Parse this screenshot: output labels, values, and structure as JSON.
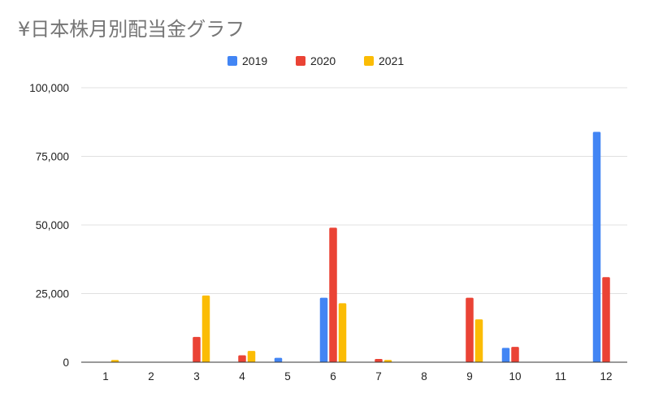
{
  "chart_data": {
    "type": "bar",
    "title": "¥日本株月別配当金グラフ",
    "categories": [
      "1",
      "2",
      "3",
      "4",
      "5",
      "6",
      "7",
      "8",
      "9",
      "10",
      "11",
      "12"
    ],
    "series": [
      {
        "name": "2019",
        "color": "#4285f4",
        "values": [
          0,
          0,
          0,
          0,
          1600,
          23500,
          0,
          0,
          0,
          5200,
          0,
          83900
        ]
      },
      {
        "name": "2020",
        "color": "#ea4335",
        "values": [
          0,
          0,
          9200,
          2500,
          0,
          49000,
          1200,
          0,
          23500,
          5600,
          0,
          31000
        ]
      },
      {
        "name": "2021",
        "color": "#fbbc04",
        "values": [
          800,
          0,
          24300,
          4100,
          0,
          21500,
          800,
          0,
          15600,
          0,
          0,
          0
        ]
      }
    ],
    "ylim": [
      0,
      100000
    ],
    "yticks": [
      {
        "value": 0,
        "label": "0"
      },
      {
        "value": 25000,
        "label": "25,000"
      },
      {
        "value": 50000,
        "label": "50,000"
      },
      {
        "value": 75000,
        "label": "75,000"
      },
      {
        "value": 100000,
        "label": "100,000"
      }
    ],
    "xlabel": "",
    "ylabel": "",
    "grid": true,
    "legend": "top-center"
  }
}
